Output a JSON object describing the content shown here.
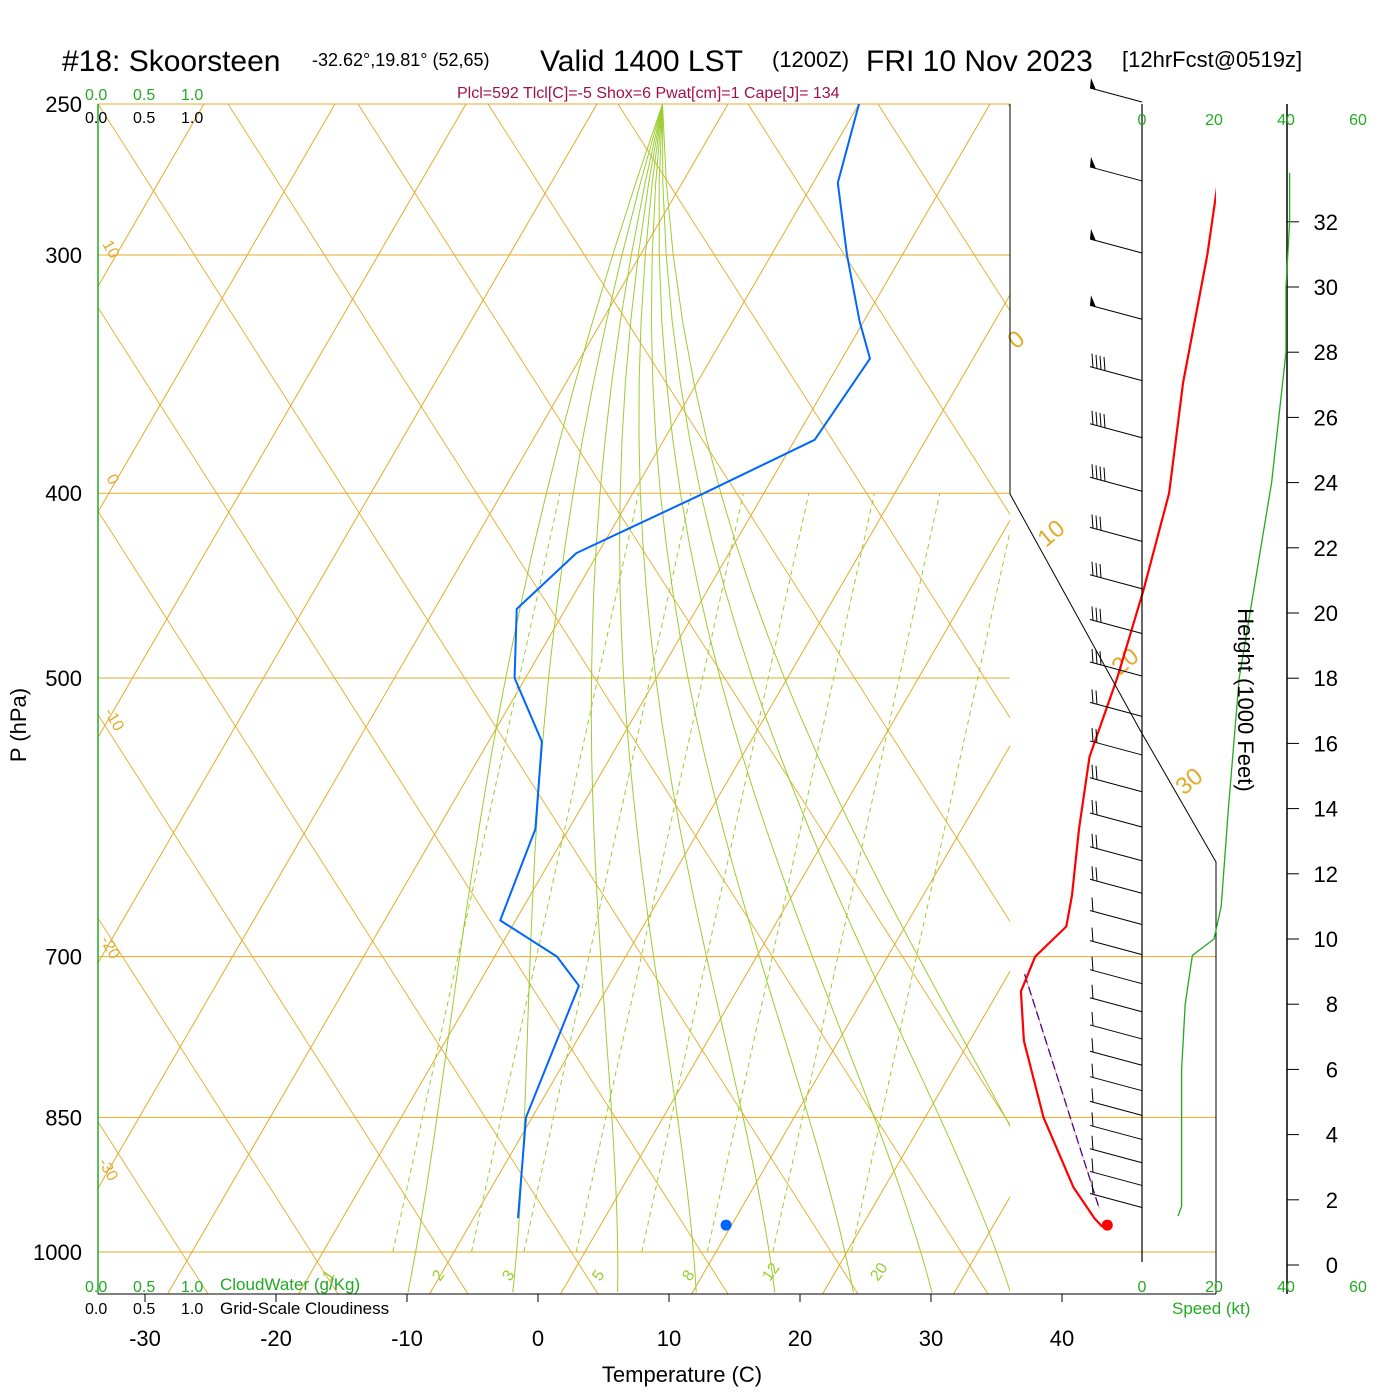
{
  "header": {
    "station": "#18: Skoorsteen",
    "coords": "-32.62°,19.81° (52,65)",
    "valid": "Valid 1400 LST",
    "zulu": "(1200Z)",
    "date": "FRI 10 Nov 2023",
    "forecast": "[12hrFcst@0519z]",
    "params": "Plcl=592 Tlcl[C]=-5 Shox=6 Pwat[cm]=1 Cape[J]= 134"
  },
  "axes": {
    "xlabel": "Temperature (C)",
    "ylabel": "P (hPa)",
    "height_label": "Height (1000 Feet)",
    "speed_label": "Speed (kt)",
    "cloudwater_label": "CloudWater (g/Kg)",
    "cloudiness_label": "Grid-Scale Cloudiness"
  },
  "colors": {
    "temperature": "#ff0000",
    "dewpoint": "#0066ff",
    "isotherm": "#e3ab2a",
    "mixing_ratio": "#9acd32",
    "wind_speed": "#22aa22",
    "parcel": "#4b0082"
  },
  "chart_data": {
    "type": "skew-t",
    "pressure_ticks": [
      "250",
      "300",
      "400",
      "500",
      "700",
      "850",
      "1000"
    ],
    "pressure_levels": [
      250,
      300,
      400,
      500,
      700,
      850,
      1000
    ],
    "temperature_ticks": [
      "-30",
      "-20",
      "-10",
      "0",
      "10",
      "20",
      "30",
      "40"
    ],
    "temperature_values": [
      -30,
      -20,
      -10,
      0,
      10,
      20,
      30,
      40
    ],
    "height_ticks": [
      "0",
      "2",
      "4",
      "6",
      "8",
      "10",
      "12",
      "14",
      "16",
      "18",
      "20",
      "22",
      "24",
      "26",
      "28",
      "30",
      "32"
    ],
    "cloud_ticks": [
      "0.0",
      "0.5",
      "1.0"
    ],
    "speed_ticks": [
      "0",
      "20",
      "40",
      "60"
    ],
    "isotherm_labels": [
      "10",
      "0",
      "-10",
      "-20",
      "-30",
      "0",
      "10",
      "20",
      "30"
    ],
    "mixing_ratio_labels": [
      "1",
      "2",
      "3",
      "5",
      "8",
      "12",
      "20"
    ],
    "temperature_profile": [
      {
        "p": 250,
        "t": 0.0
      },
      {
        "p": 275,
        "t": 1.0
      },
      {
        "p": 300,
        "t": 3.5
      },
      {
        "p": 350,
        "t": 7.5
      },
      {
        "p": 400,
        "t": 11.5
      },
      {
        "p": 450,
        "t": 14.0
      },
      {
        "p": 500,
        "t": 16.0
      },
      {
        "p": 550,
        "t": 17.5
      },
      {
        "p": 600,
        "t": 20.0
      },
      {
        "p": 650,
        "t": 22.5
      },
      {
        "p": 675,
        "t": 23.5
      },
      {
        "p": 700,
        "t": 22.5
      },
      {
        "p": 730,
        "t": 23.0
      },
      {
        "p": 775,
        "t": 25.5
      },
      {
        "p": 850,
        "t": 30.5
      },
      {
        "p": 925,
        "t": 36.0
      },
      {
        "p": 960,
        "t": 39.0
      },
      {
        "p": 970,
        "t": 40.0
      }
    ],
    "dewpoint_profile": [
      {
        "p": 250,
        "t": -30.0
      },
      {
        "p": 275,
        "t": -28.0
      },
      {
        "p": 300,
        "t": -24.0
      },
      {
        "p": 325,
        "t": -20.0
      },
      {
        "p": 340,
        "t": -17.5
      },
      {
        "p": 375,
        "t": -18.0
      },
      {
        "p": 400,
        "t": -24.0
      },
      {
        "p": 430,
        "t": -31.0
      },
      {
        "p": 460,
        "t": -33.0
      },
      {
        "p": 500,
        "t": -30.0
      },
      {
        "p": 540,
        "t": -25.0
      },
      {
        "p": 600,
        "t": -21.5
      },
      {
        "p": 670,
        "t": -20.0
      },
      {
        "p": 700,
        "t": -14.0
      },
      {
        "p": 725,
        "t": -11.0
      },
      {
        "p": 850,
        "t": -9.0
      },
      {
        "p": 960,
        "t": -5.0
      }
    ],
    "parcel_path": [
      {
        "p": 715,
        "t": 22.5
      },
      {
        "p": 950,
        "t": 39.0
      }
    ],
    "surface_temperature": {
      "p": 968,
      "t": 40.3
    },
    "surface_dewpoint": {
      "p": 968,
      "t": 11.2
    },
    "wind_speed_profile": [
      {
        "h": 1.5,
        "s": 10
      },
      {
        "h": 1.8,
        "s": 11
      },
      {
        "h": 3.0,
        "s": 11
      },
      {
        "h": 6.0,
        "s": 11
      },
      {
        "h": 8.0,
        "s": 12
      },
      {
        "h": 9.5,
        "s": 14
      },
      {
        "h": 10.0,
        "s": 20
      },
      {
        "h": 11.0,
        "s": 22
      },
      {
        "h": 14.0,
        "s": 24
      },
      {
        "h": 18.0,
        "s": 27
      },
      {
        "h": 22.0,
        "s": 33
      },
      {
        "h": 24.0,
        "s": 36
      },
      {
        "h": 26.0,
        "s": 38
      },
      {
        "h": 28.0,
        "s": 40
      },
      {
        "h": 30.0,
        "s": 40
      },
      {
        "h": 32.0,
        "s": 41
      },
      {
        "h": 33.5,
        "s": 41
      }
    ],
    "wind_barb_levels": [
      {
        "p": 250,
        "flags": 1,
        "full": 0
      },
      {
        "p": 275,
        "flags": 1,
        "full": 0
      },
      {
        "p": 300,
        "flags": 1,
        "full": 0
      },
      {
        "p": 325,
        "flags": 1,
        "full": 0
      },
      {
        "p": 350,
        "flags": 0,
        "full": 4
      },
      {
        "p": 375,
        "flags": 0,
        "full": 4
      },
      {
        "p": 400,
        "flags": 0,
        "full": 4
      },
      {
        "p": 425,
        "flags": 0,
        "full": 3
      },
      {
        "p": 450,
        "flags": 0,
        "full": 3
      },
      {
        "p": 475,
        "flags": 0,
        "full": 3
      },
      {
        "p": 500,
        "flags": 0,
        "full": 3
      },
      {
        "p": 525,
        "flags": 0,
        "full": 2
      },
      {
        "p": 550,
        "flags": 0,
        "full": 2
      },
      {
        "p": 575,
        "flags": 0,
        "full": 2
      },
      {
        "p": 600,
        "flags": 0,
        "full": 2
      },
      {
        "p": 625,
        "flags": 0,
        "full": 2
      },
      {
        "p": 650,
        "flags": 0,
        "full": 2
      },
      {
        "p": 675,
        "flags": 0,
        "full": 1
      },
      {
        "p": 700,
        "flags": 0,
        "full": 1
      },
      {
        "p": 725,
        "flags": 0,
        "full": 1
      },
      {
        "p": 750,
        "flags": 0,
        "full": 1
      },
      {
        "p": 775,
        "flags": 0,
        "full": 1
      },
      {
        "p": 800,
        "flags": 0,
        "full": 1
      },
      {
        "p": 825,
        "flags": 0,
        "full": 1
      },
      {
        "p": 850,
        "flags": 0,
        "full": 1
      },
      {
        "p": 875,
        "flags": 0,
        "full": 1
      },
      {
        "p": 900,
        "flags": 0,
        "full": 1
      },
      {
        "p": 925,
        "flags": 0,
        "full": 1
      },
      {
        "p": 950,
        "flags": 0,
        "full": 1
      }
    ]
  }
}
